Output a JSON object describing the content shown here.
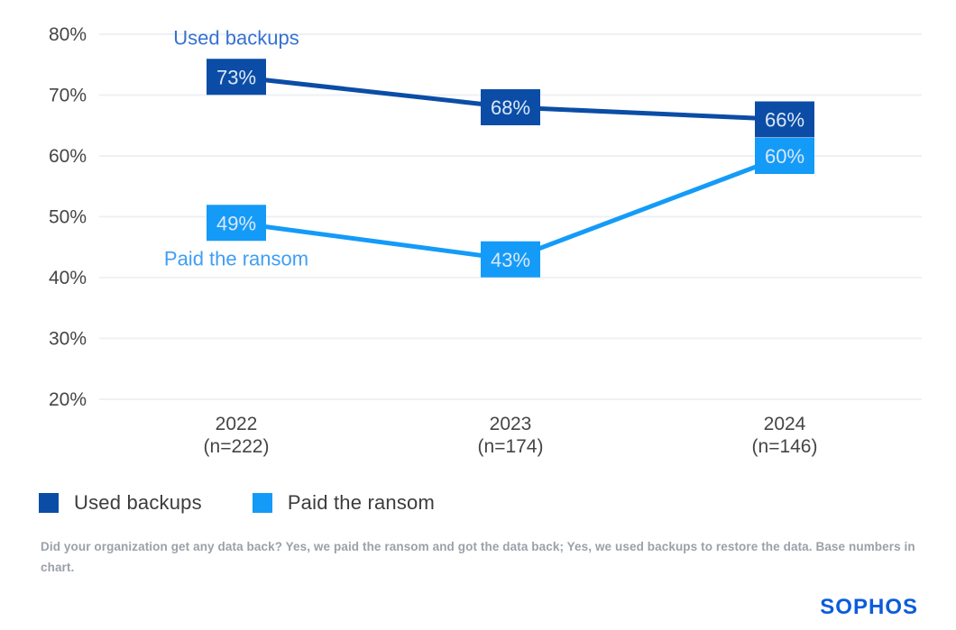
{
  "chart_data": {
    "type": "line",
    "title": "",
    "categories": [
      "2022",
      "2023",
      "2024"
    ],
    "category_sublabels": [
      "(n=222)",
      "(n=174)",
      "(n=146)"
    ],
    "series": [
      {
        "name": "Used backups",
        "values": [
          73,
          68,
          66
        ],
        "color": "#0B4DA6",
        "annotation": "Used backups",
        "annotation_color": "#3571D2",
        "annotation_position": "above"
      },
      {
        "name": "Paid the ransom",
        "values": [
          49,
          43,
          60
        ],
        "color": "#149BF8",
        "annotation": "Paid the ransom",
        "annotation_color": "#3F9EF3",
        "annotation_position": "below"
      }
    ],
    "data_labels": [
      [
        "73%",
        "68%",
        "66%"
      ],
      [
        "49%",
        "43%",
        "60%"
      ]
    ],
    "ylim": [
      20,
      80
    ],
    "yticks": [
      80,
      70,
      60,
      50,
      40,
      30,
      20
    ],
    "ytick_labels": [
      "80%",
      "70%",
      "60%",
      "50%",
      "40%",
      "30%",
      "20%"
    ],
    "grid": true,
    "legend_position": "bottom-left",
    "gridline_color": "#EEF1F4",
    "data_label_text_color": "#DCE7F8",
    "axis_text_color": "#454545"
  },
  "legend": {
    "items": [
      {
        "label": "Used backups",
        "color": "#0B4DA6"
      },
      {
        "label": "Paid the ransom",
        "color": "#149BF8"
      }
    ]
  },
  "footnote": "Did your organization get any data back? Yes, we paid the ransom and got the data back; Yes, we used backups to restore the data. Base numbers in chart.",
  "brand": {
    "logo_text": "SOPHOS",
    "color": "#0B5CDB"
  }
}
